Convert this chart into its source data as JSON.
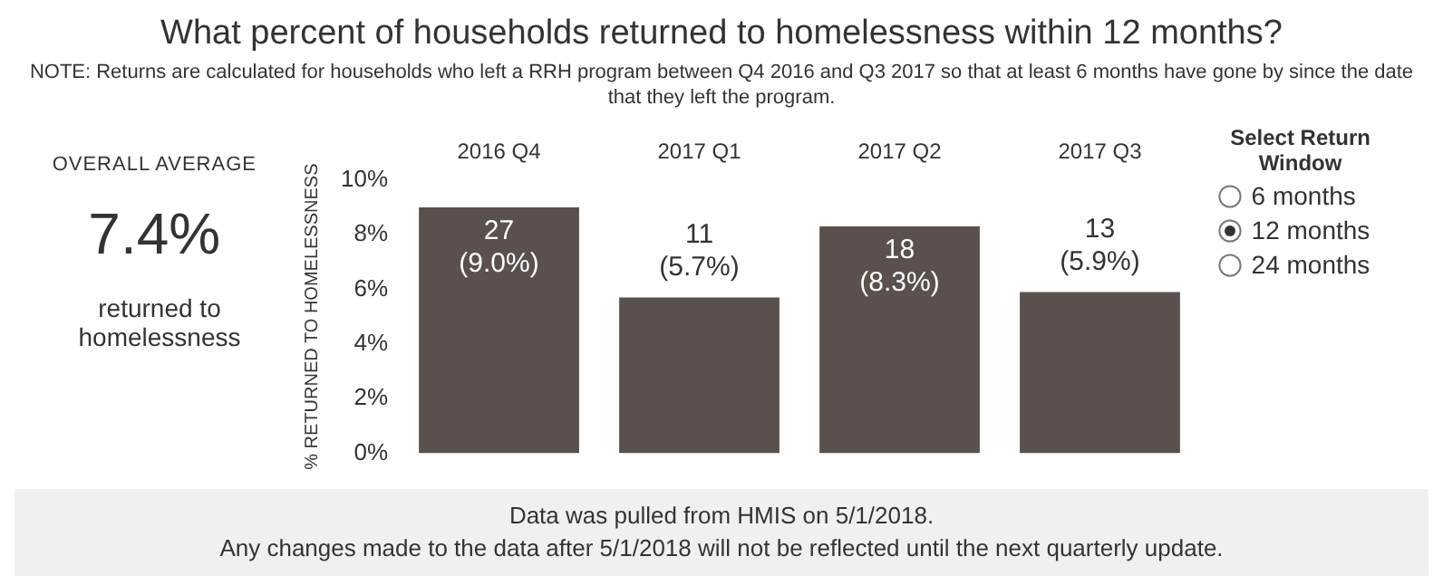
{
  "chart_data": {
    "type": "bar",
    "title": "What percent of households returned to homelessness within 12 months?",
    "subtitle": "NOTE: Returns are calculated for households who left a RRH program between Q4 2016 and Q3 2017 so that at least 6 months have gone by since the date that they left the program.",
    "ylabel": "% RETURNED TO HOMELESSNESS",
    "categories": [
      "2016 Q4",
      "2017 Q1",
      "2017 Q2",
      "2017 Q3"
    ],
    "values": [
      9.0,
      5.7,
      8.3,
      5.9
    ],
    "value_labels": [
      "27\n(9.0%)",
      "11\n(5.7%)",
      "18\n(8.3%)",
      "13\n(5.9%)"
    ],
    "color": "#5a504d",
    "ylim": [
      0,
      10
    ],
    "yticks": [
      {
        "value": 0,
        "label": "0%"
      },
      {
        "value": 2,
        "label": "2%"
      },
      {
        "value": 4,
        "label": "4%"
      },
      {
        "value": 6,
        "label": "6%"
      },
      {
        "value": 8,
        "label": "8%"
      },
      {
        "value": 10,
        "label": "10%"
      }
    ],
    "grid": false,
    "legend": false,
    "annotations": [
      "OVERALL AVERAGE",
      "7.4%",
      "returned to homelessness",
      "Select Return Window",
      "6 months",
      "12 months",
      "24 months",
      "Data was pulled from HMIS on 5/1/2018.",
      "Any changes made to the data after 5/1/2018 will not be reflected until the next quarterly update."
    ]
  }
}
